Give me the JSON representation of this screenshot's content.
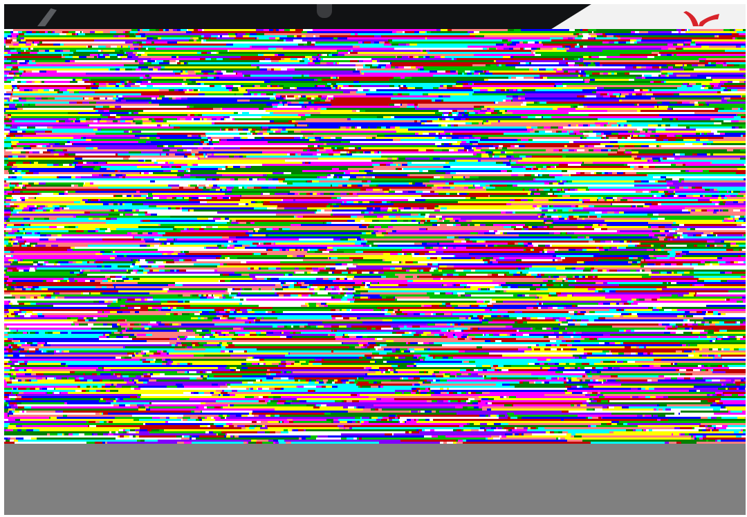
{
  "image": {
    "kind": "photo",
    "state": "corrupted",
    "colors": {
      "top_background": "#111214",
      "banner": "#f2f2f2",
      "logo_red": "#d8232a",
      "fill_gray": "#808080",
      "glitch_palette": [
        "#ff00ff",
        "#00ffff",
        "#ffff00",
        "#00c000",
        "#c00000",
        "#0000ff",
        "#ffffff",
        "#ff8080",
        "#8000ff",
        "#008000"
      ]
    }
  }
}
